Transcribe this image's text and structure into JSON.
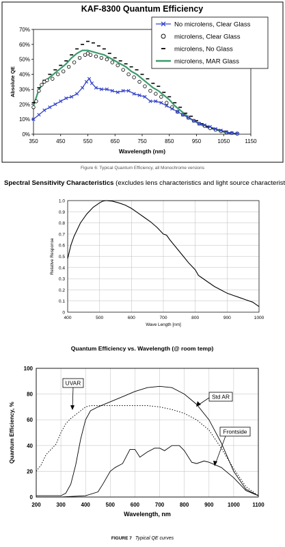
{
  "chart_data": [
    {
      "type": "line",
      "title": "KAF-8300 Quantum Efficiency",
      "xlabel": "Wavelength (nm)",
      "ylabel": "Absolute QE",
      "xlim": [
        350,
        1150
      ],
      "ylim": [
        0,
        70
      ],
      "xticks": [
        "350",
        "450",
        "550",
        "650",
        "750",
        "850",
        "950",
        "1050",
        "1150"
      ],
      "yticks": [
        "0%",
        "10%",
        "20%",
        "30%",
        "40%",
        "50%",
        "60%",
        "70%"
      ],
      "legend_position": "top-right",
      "grid": false,
      "colors": {
        "blue": "#3344cc",
        "green": "#3a9a6a",
        "black": "#000000"
      },
      "series": [
        {
          "name": "No microlens, Clear Glass",
          "marker": "x",
          "x": [
            350,
            370,
            390,
            410,
            430,
            450,
            470,
            490,
            510,
            530,
            545,
            555,
            565,
            580,
            600,
            620,
            640,
            660,
            680,
            700,
            720,
            740,
            760,
            780,
            800,
            820,
            840,
            860,
            880,
            900,
            920,
            940,
            960,
            980,
            1000,
            1020,
            1040,
            1060,
            1080,
            1100
          ],
          "y": [
            10,
            13,
            16,
            18,
            20,
            22,
            24,
            25,
            27,
            31,
            35,
            37,
            34,
            31,
            30,
            30,
            29,
            28,
            29,
            29,
            27,
            26,
            25,
            22,
            22,
            21,
            19,
            17,
            15,
            13,
            11,
            9,
            7,
            6,
            5,
            3.5,
            2.5,
            1.5,
            0.8,
            0.4
          ]
        },
        {
          "name": "microlens, Clear Glass",
          "marker": "o",
          "x": [
            350,
            360,
            370,
            380,
            390,
            400,
            420,
            440,
            460,
            480,
            500,
            520,
            540,
            550,
            560,
            580,
            600,
            620,
            640,
            660,
            680,
            700,
            720,
            740,
            760,
            780,
            800,
            820,
            840,
            860,
            880,
            900,
            920,
            940,
            960,
            980,
            1000,
            1020,
            1040,
            1060,
            1080,
            1100
          ],
          "y": [
            18,
            22,
            29,
            33,
            35,
            36,
            37,
            40,
            42,
            45,
            48,
            51,
            53,
            54,
            53,
            52,
            51,
            50,
            48,
            46,
            43,
            40,
            38,
            35,
            32,
            29,
            27,
            25,
            21,
            18,
            15,
            13,
            11,
            9,
            7,
            5.5,
            4,
            3,
            2,
            1.2,
            0.7,
            0.4
          ]
        },
        {
          "name": "microlens, No Glass",
          "marker": "dash",
          "x": [
            350,
            370,
            390,
            410,
            430,
            450,
            470,
            490,
            510,
            530,
            550,
            570,
            590,
            610,
            630,
            650,
            670,
            690,
            710,
            730,
            750,
            770,
            790,
            810,
            830,
            850,
            870,
            890,
            910,
            930,
            950,
            970,
            990,
            1010,
            1030,
            1050,
            1070,
            1090
          ],
          "y": [
            21,
            31,
            36,
            40,
            43,
            46,
            49,
            53,
            57,
            60,
            62,
            61,
            59,
            57,
            54,
            51,
            49,
            47,
            45,
            43,
            40,
            37,
            34,
            32,
            28,
            25,
            21,
            18,
            14,
            12,
            9,
            7,
            5,
            4,
            3,
            2,
            1,
            0.5
          ]
        },
        {
          "name": "microlens, MAR Glass",
          "marker": "none",
          "x": [
            350,
            370,
            390,
            410,
            430,
            450,
            470,
            490,
            510,
            530,
            550,
            570,
            590,
            610,
            630,
            650,
            670,
            690,
            710,
            730,
            750,
            770,
            790,
            810,
            830,
            850,
            870,
            890,
            910,
            930,
            950,
            970,
            990,
            1010,
            1030,
            1050,
            1070,
            1090
          ],
          "y": [
            19,
            30,
            35,
            38,
            41,
            44,
            47,
            51,
            54,
            56,
            56,
            55,
            54,
            53,
            51,
            49,
            47,
            45,
            42,
            40,
            37,
            34,
            31,
            29,
            26,
            23,
            19,
            16,
            13,
            10,
            8,
            6,
            4.5,
            3.5,
            2.5,
            1.5,
            0.8,
            0.3
          ]
        }
      ]
    },
    {
      "type": "line",
      "xlabel": "Wave Length [nm]",
      "ylabel": "Relative Response",
      "xlim": [
        400,
        1000
      ],
      "ylim": [
        0,
        1.0
      ],
      "xticks": [
        "400",
        "500",
        "600",
        "700",
        "800",
        "900",
        "1000"
      ],
      "yticks": [
        "0",
        "0.1",
        "0.2",
        "0.3",
        "0.4",
        "0.5",
        "0.6",
        "0.7",
        "0.8",
        "0.9",
        "1.0"
      ],
      "grid": true,
      "series": [
        {
          "x": [
            400,
            410,
            420,
            440,
            460,
            480,
            500,
            510,
            520,
            540,
            560,
            580,
            600,
            620,
            640,
            660,
            680,
            700,
            710,
            720,
            740,
            760,
            780,
            800,
            810,
            820,
            840,
            860,
            880,
            900,
            920,
            940,
            960,
            980,
            1000
          ],
          "y": [
            0.48,
            0.6,
            0.68,
            0.8,
            0.88,
            0.94,
            0.98,
            0.995,
            1.0,
            0.995,
            0.98,
            0.96,
            0.93,
            0.89,
            0.85,
            0.81,
            0.76,
            0.7,
            0.69,
            0.65,
            0.58,
            0.51,
            0.44,
            0.38,
            0.33,
            0.31,
            0.27,
            0.23,
            0.2,
            0.17,
            0.15,
            0.13,
            0.11,
            0.09,
            0.05
          ]
        }
      ]
    },
    {
      "type": "line",
      "title": "Quantum Efficiency vs. Wavelength (@ room temp)",
      "xlabel": "Wavelength, nm",
      "ylabel": "Quantum Efficiency, %",
      "xlim": [
        200,
        1100
      ],
      "ylim": [
        0,
        100
      ],
      "xticks": [
        "200",
        "300",
        "400",
        "500",
        "600",
        "700",
        "800",
        "900",
        "1000",
        "1100"
      ],
      "yticks": [
        "0",
        "20",
        "40",
        "60",
        "80",
        "100"
      ],
      "grid": true,
      "annotations": [
        "UVAR",
        "Std AR",
        "Frontside"
      ],
      "series": [
        {
          "name": "UVAR",
          "style": "dotted",
          "x": [
            200,
            220,
            240,
            260,
            280,
            300,
            320,
            340,
            360,
            380,
            400,
            420,
            450,
            500,
            550,
            600,
            650,
            700,
            750,
            800,
            850,
            900,
            950,
            1000,
            1050,
            1100
          ],
          "y": [
            20,
            25,
            33,
            37,
            41,
            50,
            57,
            61,
            64,
            67,
            70,
            71,
            71,
            71,
            71,
            71,
            71,
            70,
            68,
            65,
            60,
            52,
            38,
            22,
            8,
            1
          ]
        },
        {
          "name": "Std AR",
          "style": "solid",
          "x": [
            200,
            250,
            300,
            320,
            340,
            360,
            380,
            400,
            420,
            450,
            500,
            550,
            600,
            650,
            700,
            750,
            800,
            850,
            900,
            950,
            1000,
            1050,
            1100
          ],
          "y": [
            1,
            1,
            1,
            3,
            10,
            25,
            45,
            60,
            67,
            70,
            74,
            78,
            82,
            85,
            86,
            85,
            80,
            72,
            60,
            42,
            20,
            6,
            1
          ]
        },
        {
          "name": "Frontside",
          "style": "solid",
          "x": [
            200,
            300,
            400,
            450,
            470,
            500,
            520,
            550,
            580,
            600,
            620,
            650,
            680,
            700,
            720,
            750,
            780,
            800,
            830,
            850,
            880,
            900,
            950,
            1000,
            1050,
            1100
          ],
          "y": [
            0,
            0,
            1,
            4,
            10,
            20,
            23,
            26,
            37,
            37,
            31,
            35,
            38,
            38,
            36,
            40,
            40,
            36,
            27,
            26,
            28,
            27,
            23,
            15,
            5,
            1
          ]
        }
      ]
    }
  ],
  "captions": {
    "figure6": "Figure 6: Typical Quantum Efficiency, all Monochrome versions",
    "spectral_bold": "Spectral Sensitivity Characteristics",
    "spectral_rest": " (excludes lens characteristics and light source characteristics)",
    "figure7_label": "FIGURE 7",
    "figure7_text": "Typical QE curves"
  }
}
